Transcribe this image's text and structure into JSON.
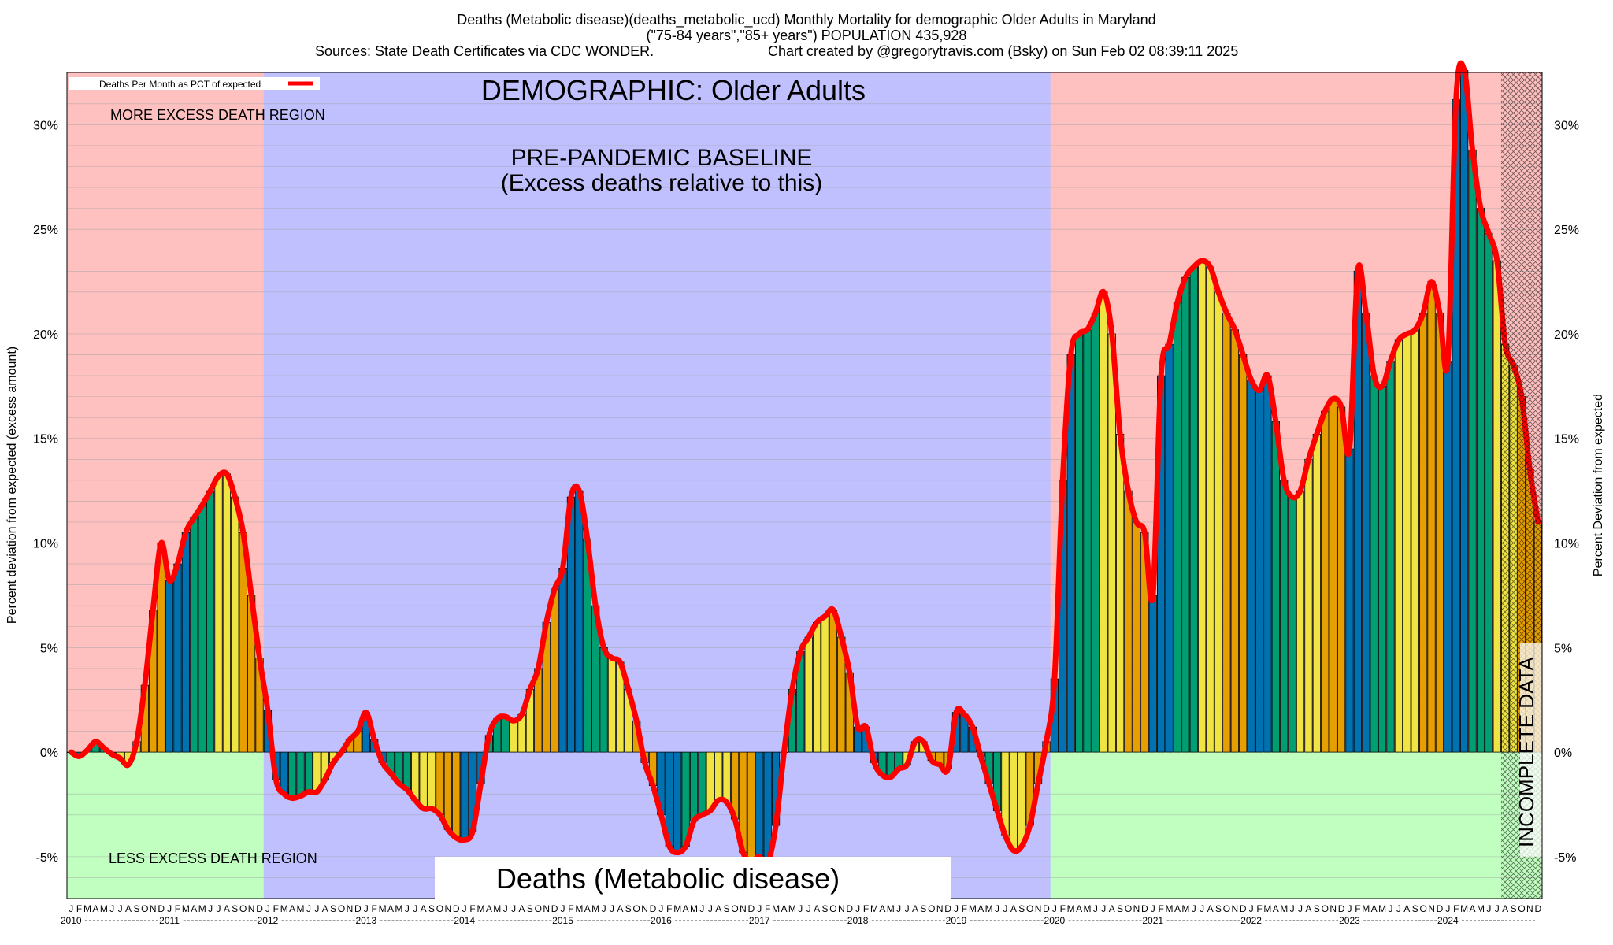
{
  "header": {
    "line1": "Deaths (Metabolic disease)(deaths_metabolic_ucd) Monthly Mortality for demographic Older Adults in Maryland",
    "line2": "(\"75-84 years\",\"85+ years\") POPULATION 435,928",
    "line3a": "Sources: State Death Certificates via CDC WONDER.",
    "line3b": "Chart created by @gregorytravis.com (Bsky) on Sun Feb 02 08:39:11 2025"
  },
  "annotations": {
    "demographic": "DEMOGRAPHIC: Older Adults",
    "baseline_1": "PRE-PANDEMIC BASELINE",
    "baseline_2": "(Excess deaths relative to this)",
    "more_region": "MORE EXCESS DEATH REGION",
    "less_region": "LESS EXCESS DEATH REGION",
    "incomplete": "INCOMPLETE DATA",
    "cause": "Deaths (Metabolic disease)"
  },
  "colors": {
    "more_region": "#ffc0c0",
    "less_region": "#c0ffc0",
    "baseline": "#c0c0ff",
    "line": "#ff0000",
    "bars": [
      "#0072b2",
      "#009e73",
      "#f0e442",
      "#e69f00"
    ]
  },
  "chart_data": {
    "type": "bar",
    "title": "Deaths (Metabolic disease)(deaths_metabolic_ucd) Monthly Mortality for demographic Older Adults in Maryland",
    "ylabel": "Percent deviation from expected (excess amount)",
    "ylabel_right": "Percent Deviation from expected",
    "legend": "Deaths Per Month as PCT of expected",
    "legend_position": "top-left",
    "ylim": [
      -7,
      32.5
    ],
    "yticks": [
      "-5%",
      "0%",
      "5%",
      "10%",
      "15%",
      "20%",
      "25%",
      "30%"
    ],
    "ytick_values": [
      -5,
      0,
      5,
      10,
      15,
      20,
      25,
      30
    ],
    "x_start": "2010-01",
    "years": [
      "2010",
      "2011",
      "2012",
      "2013",
      "2014",
      "2015",
      "2016",
      "2017",
      "2018",
      "2019",
      "2020",
      "2021",
      "2022",
      "2023",
      "2024"
    ],
    "month_letters": [
      "J",
      "F",
      "M",
      "A",
      "M",
      "J",
      "J",
      "A",
      "S",
      "O",
      "N",
      "D"
    ],
    "baseline_period": [
      "2012-01",
      "2019-12"
    ],
    "incomplete_from": "2024-08",
    "values": [
      0.0,
      -0.2,
      0.1,
      0.5,
      0.2,
      -0.1,
      -0.3,
      -0.6,
      0.5,
      3.2,
      6.8,
      10.0,
      8.2,
      9.0,
      10.5,
      11.2,
      11.8,
      12.5,
      13.2,
      13.3,
      12.2,
      10.5,
      7.5,
      4.5,
      2.0,
      -1.3,
      -2.0,
      -2.2,
      -2.1,
      -1.9,
      -1.9,
      -1.3,
      -0.5,
      0.0,
      0.6,
      1.0,
      1.9,
      0.6,
      -0.5,
      -1.0,
      -1.5,
      -1.8,
      -2.3,
      -2.7,
      -2.7,
      -3.0,
      -3.7,
      -4.1,
      -4.2,
      -3.8,
      -1.5,
      0.8,
      1.6,
      1.7,
      1.5,
      1.8,
      3.0,
      4.0,
      6.2,
      7.8,
      8.8,
      12.2,
      12.5,
      10.2,
      7.0,
      5.0,
      4.5,
      4.3,
      3.0,
      1.5,
      -0.5,
      -1.6,
      -3.0,
      -4.5,
      -4.8,
      -4.5,
      -3.3,
      -3.0,
      -2.8,
      -2.3,
      -2.4,
      -3.2,
      -4.8,
      -5.2,
      -5.0,
      -5.3,
      -3.5,
      0.0,
      3.0,
      4.8,
      5.5,
      6.2,
      6.5,
      6.8,
      5.5,
      3.8,
      1.2,
      1.2,
      -0.5,
      -1.1,
      -1.2,
      -0.8,
      -0.6,
      0.5,
      0.5,
      -0.4,
      -0.6,
      -0.8,
      1.9,
      1.8,
      1.2,
      -0.2,
      -1.5,
      -2.8,
      -4.0,
      -4.7,
      -4.5,
      -3.5,
      -1.5,
      0.5,
      3.5,
      13.0,
      19.0,
      20.0,
      20.2,
      21.0,
      22.0,
      20.0,
      15.2,
      12.5,
      11.0,
      10.5,
      7.5,
      18.0,
      19.5,
      21.5,
      22.7,
      23.2,
      23.5,
      23.2,
      22.0,
      21.0,
      20.2,
      19.0,
      17.8,
      17.3,
      18.0,
      15.8,
      13.0,
      12.2,
      12.5,
      14.0,
      15.2,
      16.3,
      16.9,
      16.5,
      14.5,
      23.0,
      21.0,
      18.0,
      17.5,
      18.7,
      19.7,
      20.0,
      20.2,
      21.0,
      22.5,
      21.0,
      18.7,
      31.2,
      32.6,
      28.8,
      26.0,
      24.8,
      23.5,
      19.5,
      18.5,
      17.0,
      13.5,
      11.0
    ]
  }
}
